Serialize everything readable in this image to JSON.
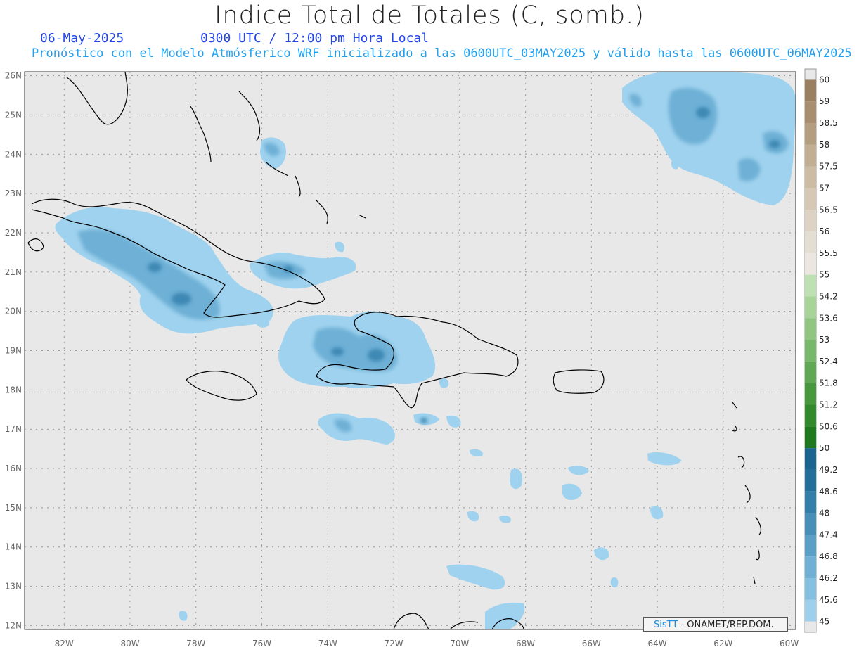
{
  "header": {
    "title": "Indice Total de Totales (C, somb.)",
    "date": "06-May-2025",
    "time": "0300 UTC / 12:00 pm Hora Local",
    "subtitle": "Pronóstico con el Modelo Atmósferico WRF inicializado a las 0600UTC_03MAY2025 y válido hasta las  0600UTC_06MAY2025"
  },
  "map": {
    "lon_range": [
      -83.2,
      -59.8
    ],
    "lat_range": [
      11.9,
      26.1
    ],
    "lat_ticks": [
      "26N",
      "25N",
      "24N",
      "23N",
      "22N",
      "21N",
      "20N",
      "19N",
      "18N",
      "17N",
      "16N",
      "15N",
      "14N",
      "13N",
      "12N"
    ],
    "lon_ticks": [
      "82W",
      "80W",
      "78W",
      "76W",
      "74W",
      "72W",
      "70W",
      "68W",
      "66W",
      "64W",
      "62W",
      "60W"
    ],
    "grid": true,
    "background_color": "#e8e8e8",
    "coastline_color": "#000000"
  },
  "colorbar": {
    "labels": [
      "60",
      "59",
      "58.5",
      "58",
      "57.5",
      "57",
      "56.5",
      "56",
      "55.5",
      "55",
      "54.2",
      "53.6",
      "53",
      "52.4",
      "51.8",
      "51.2",
      "50.6",
      "50",
      "49.2",
      "48.6",
      "48",
      "47.4",
      "46.8",
      "46.2",
      "45.6",
      "45"
    ],
    "colors": [
      "#9a8060",
      "#a88e6e",
      "#b49e80",
      "#c2ae92",
      "#ccbca4",
      "#d6c8b4",
      "#ddd3c4",
      "#e4ddd3",
      "#ebe7e0",
      "#bfe0b2",
      "#a8d49a",
      "#90c682",
      "#78b86a",
      "#60a854",
      "#48983e",
      "#328a2c",
      "#1e7a1c",
      "#1a6490",
      "#22709a",
      "#3280aa",
      "#4690b8",
      "#5aa0c6",
      "#70b0d4",
      "#86c0e0",
      "#9cd0ec",
      "#e8e8e8"
    ]
  },
  "credit": {
    "brand": "SisTT",
    "text": "- ONAMET/REP.DOM."
  }
}
